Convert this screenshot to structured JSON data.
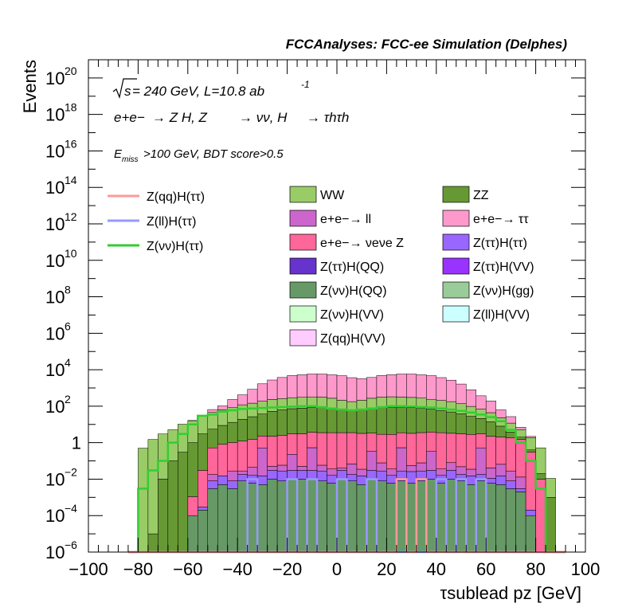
{
  "header": {
    "title": "FCCAnalyses: FCC-ee Simulation (Delphes)"
  },
  "annotations": {
    "energy_sqrt": "s",
    "energy_rest": " = 240 GeV, L=10.8 ab",
    "energy_exp": "-1",
    "process": {
      "initial": "e+e−",
      "z": "→ Z H, Z",
      "nu": "→ νν, H",
      "tau": "→ τhτh"
    },
    "selection_prefix": "E",
    "selection_sub": "miss",
    "selection_rest": ">100 GeV, BDT score>0.5"
  },
  "legend": {
    "lines": [
      {
        "label": "Z(qq)H(ττ)",
        "color": "#ff9999"
      },
      {
        "label": "Z(ll)H(ττ)",
        "color": "#9999ff"
      },
      {
        "label": "Z(νν)H(ττ)",
        "color": "#33cc33"
      }
    ],
    "fills": [
      {
        "label": "WW",
        "color": "#99cc66"
      },
      {
        "label": "ZZ",
        "color": "#669933"
      },
      {
        "label": "e+e−→ ll",
        "color": "#cc66cc"
      },
      {
        "label": "e+e−→ ττ",
        "color": "#ff99cc"
      },
      {
        "label": "e+e−→ νeνe Z",
        "color": "#ff6699"
      },
      {
        "label": "Z(ττ)H(ττ)",
        "color": "#9966ff"
      },
      {
        "label": "Z(ττ)H(QQ)",
        "color": "#6633cc"
      },
      {
        "label": "Z(ττ)H(VV)",
        "color": "#9933ff"
      },
      {
        "label": "Z(νν)H(QQ)",
        "color": "#669966"
      },
      {
        "label": "Z(νν)H(gg)",
        "color": "#99cc99"
      },
      {
        "label": "Z(νν)H(VV)",
        "color": "#ccffcc"
      },
      {
        "label": "Z(ll)H(VV)",
        "color": "#ccffff"
      },
      {
        "label": "Z(qq)H(VV)",
        "color": "#ffccff"
      }
    ]
  },
  "chart_data": {
    "type": "bar",
    "title": "FCCAnalyses: FCC-ee Simulation (Delphes)",
    "xlabel": "τsublead pz [GeV]",
    "ylabel": "Events",
    "xlim": [
      -100,
      100
    ],
    "ylim": [
      1e-06,
      1e+21
    ],
    "yscale": "log",
    "grid": false,
    "legend_position": "top",
    "x_ticks": [
      "−100",
      "−80",
      "−60",
      "−40",
      "−20",
      "0",
      "20",
      "40",
      "60",
      "80",
      "100"
    ],
    "y_ticks": [
      {
        "base": "10",
        "exp": "−6"
      },
      {
        "base": "10",
        "exp": "−4"
      },
      {
        "base": "10",
        "exp": "−2"
      },
      {
        "base": "1",
        "exp": ""
      },
      {
        "base": "10",
        "exp": "2"
      },
      {
        "base": "10",
        "exp": "4"
      },
      {
        "base": "10",
        "exp": "6"
      },
      {
        "base": "10",
        "exp": "8"
      },
      {
        "base": "10",
        "exp": "10"
      },
      {
        "base": "10",
        "exp": "12"
      },
      {
        "base": "10",
        "exp": "14"
      },
      {
        "base": "10",
        "exp": "16"
      },
      {
        "base": "10",
        "exp": "18"
      },
      {
        "base": "10",
        "exp": "20"
      }
    ],
    "bin_edges": {
      "start": -84,
      "width": 4,
      "count": 44
    },
    "stacked_series": [
      {
        "name": "Z(νν)H(QQ)",
        "color": "#669966",
        "values": [
          0,
          0,
          0,
          0,
          0,
          0,
          0.0001,
          0.0002,
          0.003,
          0.005,
          0.003,
          0.008,
          0.006,
          0.005,
          0.01,
          0.008,
          0.01,
          0.01,
          0.01,
          0.008,
          0.006,
          0.01,
          0.008,
          0.005,
          0.01,
          0.008,
          0.006,
          0.008,
          0.006,
          0.008,
          0.01,
          0.006,
          0.01,
          0.008,
          0.005,
          0.008,
          0.006,
          0.005,
          0.003,
          0.002,
          0.0001,
          0,
          0,
          0
        ]
      },
      {
        "name": "Z(ττ)H(ττ)",
        "color": "#9966ff",
        "values": [
          0,
          0,
          0,
          0,
          0,
          0,
          0,
          0.0001,
          0.005,
          0.01,
          0.005,
          0.01,
          0.01,
          0.01,
          0.02,
          0.02,
          0.02,
          0.02,
          0.02,
          0.02,
          0.01,
          0.02,
          0.01,
          0.01,
          0.02,
          0.02,
          0.01,
          0.02,
          0.02,
          0.02,
          0.02,
          0.01,
          0.02,
          0.01,
          0.01,
          0.01,
          0.005,
          0.01,
          0.005,
          0.001,
          0.0001,
          0,
          0,
          0
        ]
      },
      {
        "name": "e+e−→ ll",
        "color": "#cc66cc",
        "values": [
          0,
          0,
          0,
          0,
          0,
          0,
          0,
          0,
          0.01,
          0,
          0.02,
          0.01,
          0.03,
          0.5,
          0.02,
          0.03,
          0.2,
          0.02,
          0.5,
          0.03,
          0.02,
          0.01,
          0.05,
          0.02,
          0.3,
          0.05,
          0.02,
          0.5,
          0.03,
          0.05,
          0.3,
          0.02,
          0.05,
          0.03,
          0.02,
          0.5,
          0.03,
          0.05,
          0.02,
          0.01,
          0,
          0,
          0,
          0
        ]
      },
      {
        "name": "e+e−→ νeνe Z",
        "color": "#ff6699",
        "values": [
          0,
          0,
          0,
          0,
          0,
          0,
          0.001,
          0.03,
          0.5,
          0.8,
          1,
          1.2,
          1.5,
          1.8,
          2.2,
          2.5,
          2.8,
          3,
          3.2,
          3.5,
          3.5,
          3.5,
          3.5,
          3.2,
          3,
          2.8,
          2.8,
          3,
          3.2,
          3.5,
          3.5,
          3.5,
          3.2,
          3,
          2.8,
          2.5,
          2.2,
          2,
          1.8,
          1.5,
          0.3,
          0.01,
          0,
          0
        ]
      },
      {
        "name": "ZZ",
        "color": "#669933",
        "values": [
          0,
          0,
          1e-05,
          0.01,
          0.1,
          0.3,
          1,
          3,
          5,
          8,
          12,
          18,
          25,
          35,
          50,
          60,
          70,
          75,
          80,
          80,
          70,
          60,
          55,
          60,
          70,
          80,
          85,
          85,
          80,
          75,
          65,
          55,
          45,
          35,
          25,
          18,
          12,
          6,
          2,
          0.5,
          0.1,
          0.01,
          0.001,
          0
        ]
      },
      {
        "name": "WW",
        "color": "#99cc66",
        "values": [
          0,
          0.5,
          1.5,
          3,
          5,
          10,
          15,
          25,
          40,
          55,
          70,
          100,
          120,
          150,
          180,
          200,
          220,
          230,
          240,
          230,
          200,
          150,
          120,
          150,
          200,
          230,
          240,
          230,
          220,
          200,
          170,
          150,
          130,
          100,
          70,
          50,
          30,
          15,
          8,
          3,
          1.5,
          0.5,
          0.01,
          0
        ]
      },
      {
        "name": "e+e−→ ττ",
        "color": "#ff99cc",
        "values": [
          0,
          0,
          0,
          0,
          0,
          0,
          0.5,
          2,
          20,
          40,
          150,
          300,
          700,
          1500,
          2500,
          3500,
          4500,
          5000,
          5500,
          5500,
          5000,
          4500,
          3500,
          3000,
          3500,
          4500,
          5000,
          5500,
          5500,
          5000,
          4500,
          3500,
          2500,
          1500,
          700,
          300,
          150,
          40,
          15,
          2,
          0.3,
          0,
          0,
          0
        ]
      }
    ],
    "line_series": [
      {
        "name": "Z(νν)H(ττ)",
        "color": "#33cc33",
        "values": [
          1e-07,
          0.003,
          0.03,
          0.1,
          1,
          3,
          10,
          30,
          35,
          50,
          60,
          70,
          75,
          80,
          85,
          90,
          95,
          100,
          100,
          90,
          75,
          65,
          60,
          65,
          75,
          90,
          100,
          100,
          95,
          90,
          85,
          75,
          65,
          55,
          45,
          35,
          25,
          15,
          5,
          1,
          0.1,
          0.003,
          1e-07,
          0
        ]
      },
      {
        "name": "Z(ll)H(ττ)",
        "color": "#9999ff",
        "values": [
          0,
          0,
          0,
          0,
          0,
          0,
          0,
          0,
          0,
          0,
          0,
          1e-07,
          0.01,
          1e-07,
          0,
          0,
          0.01,
          0,
          0.01,
          0,
          0,
          0.01,
          1e-07,
          0,
          0.01,
          0,
          0,
          0,
          0,
          0,
          0,
          0.01,
          0,
          0.01,
          1e-07,
          0.01,
          0,
          0,
          0,
          0,
          0,
          0,
          0,
          0
        ]
      },
      {
        "name": "Z(qq)H(ττ)",
        "color": "#ff9999",
        "values": [
          0,
          0,
          0,
          0,
          0,
          0,
          0,
          0,
          0,
          0,
          0,
          0,
          0,
          0,
          0,
          0,
          0,
          0,
          0,
          0,
          0,
          0,
          0,
          0,
          0,
          0,
          0,
          0.01,
          0,
          0.01,
          0,
          0,
          0,
          0,
          0,
          0,
          0,
          0,
          0,
          0,
          0,
          0,
          0,
          0
        ]
      }
    ]
  }
}
